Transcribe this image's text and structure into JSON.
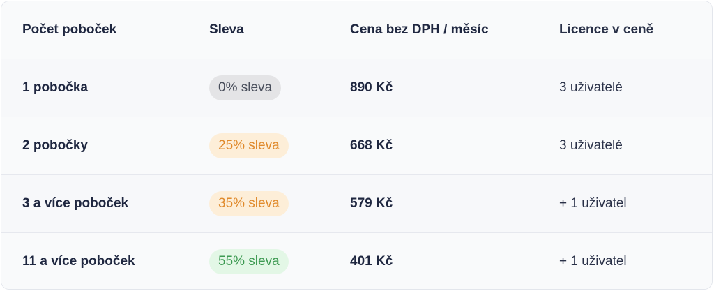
{
  "headers": [
    "Počet poboček",
    "Sleva",
    "Cena bez DPH / měsíc",
    "Licence v ceně"
  ],
  "rows": [
    {
      "branches": "1 pobočka",
      "discount": "0% sleva",
      "discount_bg": "#e4e4e6",
      "discount_fg": "#4a4f5c",
      "price": "890 Kč",
      "licence": "3 uživatelé"
    },
    {
      "branches": "2 pobočky",
      "discount": "25% sleva",
      "discount_bg": "#fdeed8",
      "discount_fg": "#e08a2c",
      "price": "668 Kč",
      "licence": "3 uživatelé"
    },
    {
      "branches": "3 a více poboček",
      "discount": "35% sleva",
      "discount_bg": "#fdeed8",
      "discount_fg": "#e08a2c",
      "price": "579 Kč",
      "licence": "+ 1 uživatel"
    },
    {
      "branches": "11 a více poboček",
      "discount": "55% sleva",
      "discount_bg": "#e3f7e6",
      "discount_fg": "#3d9a52",
      "price": "401 Kč",
      "licence": "+ 1 uživatel"
    }
  ]
}
